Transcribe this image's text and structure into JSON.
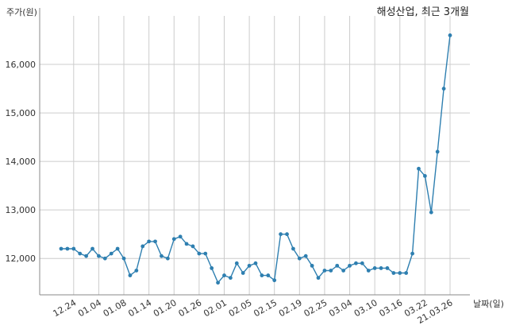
{
  "chart_data": {
    "type": "line",
    "title": "해성산업, 최근 3개월",
    "ylabel": "주가(원)",
    "xlabel": "날짜(일)",
    "ylim": [
      11250,
      17000
    ],
    "yticks": [
      12000,
      13000,
      14000,
      15000,
      16000
    ],
    "ytick_labels": [
      "12,000",
      "13,000",
      "14,000",
      "15,000",
      "16,000"
    ],
    "xtick_labels": [
      "12.24",
      "01.04",
      "01.08",
      "01.14",
      "01.20",
      "01.26",
      "02.01",
      "02.05",
      "02.15",
      "02.19",
      "02.25",
      "03.04",
      "03.10",
      "03.16",
      "03.22",
      "21.03.26"
    ],
    "xtick_positions": [
      2,
      6,
      10,
      14,
      18,
      22,
      26,
      30,
      34,
      38,
      42,
      46,
      50,
      54,
      58,
      62
    ],
    "grid": true,
    "line_color": "#2e7fb0",
    "series": [
      {
        "values": [
          12200,
          12200,
          12200,
          12100,
          12050,
          12200,
          12050,
          12000,
          12100,
          12200,
          12000,
          11650,
          11750,
          12250,
          12350,
          12350,
          12050,
          12000,
          12400,
          12450,
          12300,
          12250,
          12100,
          12100,
          11800,
          11500,
          11650,
          11600,
          11900,
          11700,
          11850,
          11900,
          11650,
          11650,
          11550,
          12500,
          12500,
          12200,
          12000,
          12050,
          11850,
          11600,
          11750,
          11750,
          11850,
          11750,
          11850,
          11900,
          11900,
          11750,
          11800,
          11800,
          11800,
          11700,
          11700,
          11700,
          12100,
          13850,
          13700,
          12950,
          14200,
          15500,
          16600
        ]
      }
    ]
  }
}
